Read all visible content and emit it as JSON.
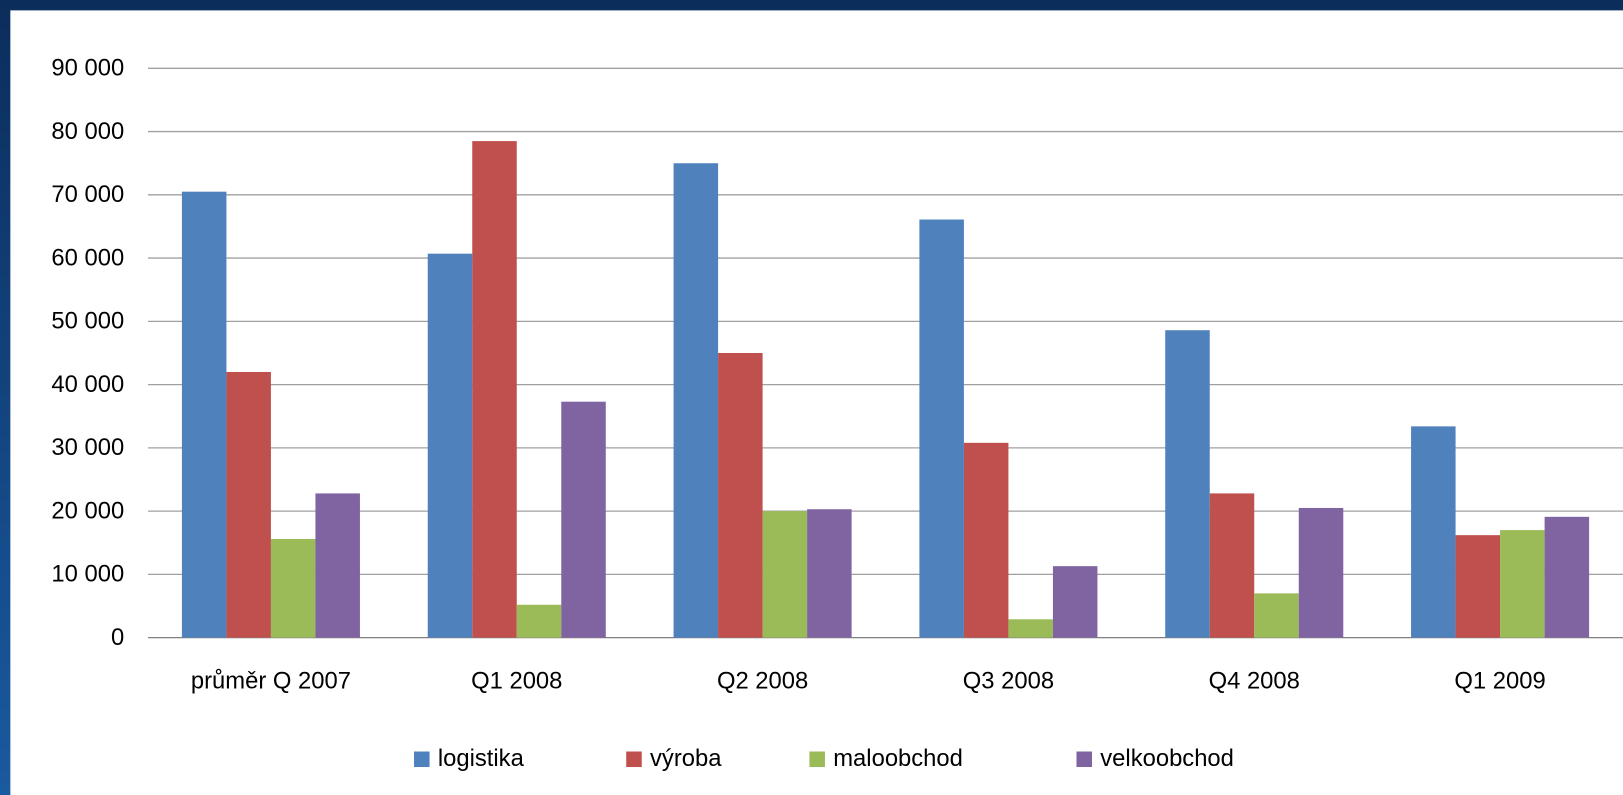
{
  "chart_data": {
    "type": "bar",
    "categories": [
      "průměr Q 2007",
      "Q1 2008",
      "Q2 2008",
      "Q3 2008",
      "Q4 2008",
      "Q1 2009"
    ],
    "series": [
      {
        "name": "logistika",
        "color": "#4f81bd",
        "values": [
          70500,
          60700,
          75000,
          66100,
          48600,
          33400
        ]
      },
      {
        "name": "výroba",
        "color": "#c0504d",
        "values": [
          42000,
          78500,
          45000,
          30800,
          22800,
          16200
        ]
      },
      {
        "name": "maloobchod",
        "color": "#9bbb59",
        "values": [
          15600,
          5200,
          20000,
          2900,
          7000,
          17000
        ]
      },
      {
        "name": "velkoobchod",
        "color": "#8064a2",
        "values": [
          22800,
          37300,
          20300,
          11300,
          20500,
          19100
        ]
      }
    ],
    "ylim": [
      0,
      90000
    ],
    "yticks": [
      0,
      {
        "value": 10000,
        "label": "10 000"
      },
      {
        "value": 20000,
        "label": "20 000"
      },
      {
        "value": 30000,
        "label": "30 000"
      },
      {
        "value": 40000,
        "label": "40 000"
      },
      {
        "value": 50000,
        "label": "50 000"
      },
      {
        "value": 60000,
        "label": "60 000"
      },
      {
        "value": 70000,
        "label": "70 000"
      },
      {
        "value": 80000,
        "label": "80 000"
      },
      {
        "value": 90000,
        "label": "90 000"
      }
    ],
    "grid": true,
    "legend": "bottom"
  }
}
